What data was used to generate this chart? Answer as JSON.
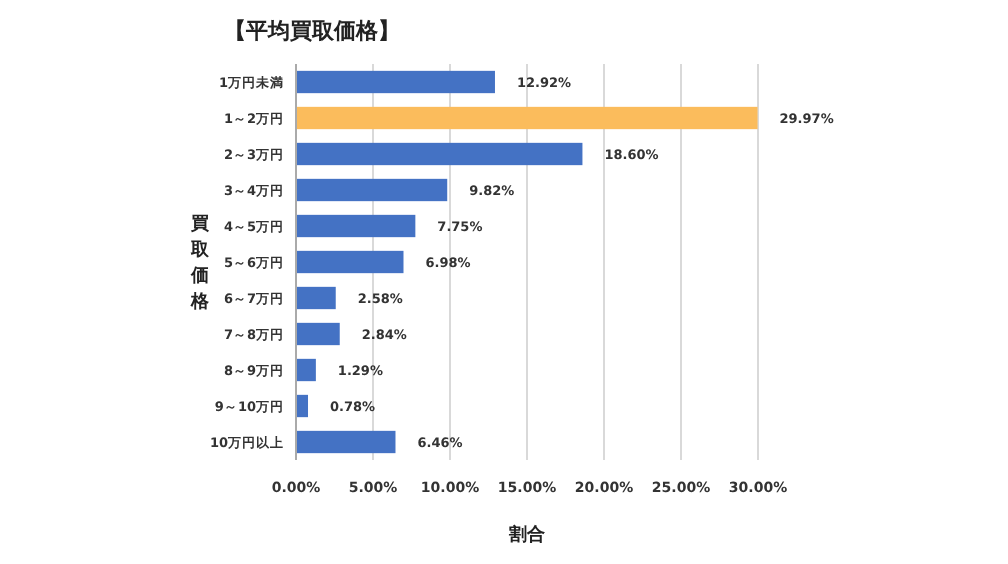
{
  "chart_data": {
    "type": "bar",
    "orientation": "horizontal",
    "title": "【平均買取価格】",
    "xlabel": "割合",
    "ylabel": "買取価格",
    "categories": [
      "1万円未満",
      "1～2万円",
      "2～3万円",
      "3～4万円",
      "4～5万円",
      "5～6万円",
      "6～7万円",
      "7～8万円",
      "8～9万円",
      "9～10万円",
      "10万円以上"
    ],
    "values": [
      12.92,
      29.97,
      18.6,
      9.82,
      7.75,
      6.98,
      2.58,
      2.84,
      1.29,
      0.78,
      6.46
    ],
    "value_labels": [
      "12.92%",
      "29.97%",
      "18.60%",
      "9.82%",
      "7.75%",
      "6.98%",
      "2.58%",
      "2.84%",
      "1.29%",
      "0.78%",
      "6.46%"
    ],
    "colors": [
      "#4472c4",
      "#fbbc5c",
      "#4472c4",
      "#4472c4",
      "#4472c4",
      "#4472c4",
      "#4472c4",
      "#4472c4",
      "#4472c4",
      "#4472c4",
      "#4472c4"
    ],
    "xlim": [
      0,
      30
    ],
    "xticks": [
      {
        "value": 0,
        "label": "0.00%"
      },
      {
        "value": 5,
        "label": "5.00%"
      },
      {
        "value": 10,
        "label": "10.00%"
      },
      {
        "value": 15,
        "label": "15.00%"
      },
      {
        "value": 20,
        "label": "20.00%"
      },
      {
        "value": 25,
        "label": "25.00%"
      },
      {
        "value": 30,
        "label": "30.00%"
      }
    ],
    "grid": "x"
  }
}
